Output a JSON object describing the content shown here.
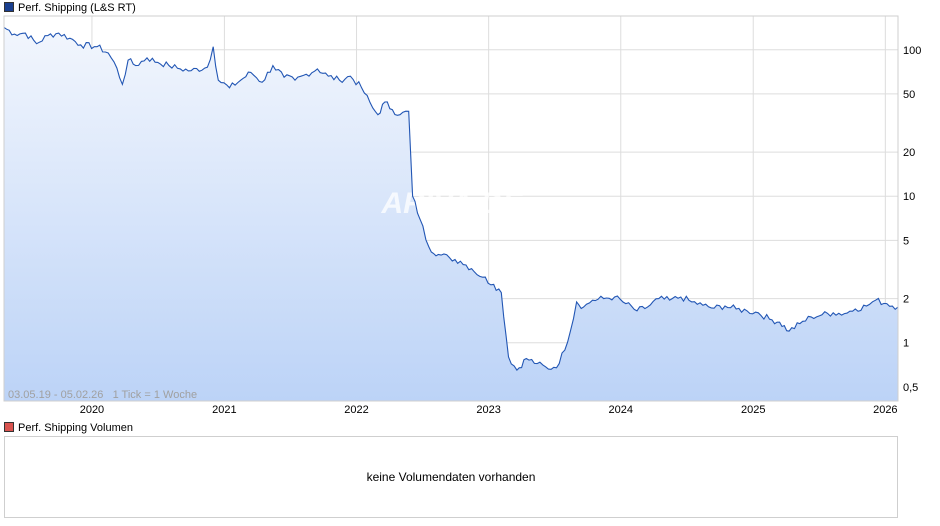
{
  "legend": {
    "price_label": "Perf. Shipping (L&S RT)",
    "price_color": "#1a3f8f",
    "volume_label": "Perf. Shipping Volumen",
    "volume_color": "#d9534f"
  },
  "watermark": "ARIVA.DE",
  "info_text": "03.05.19 - 05.02.26   1 Tick = 1 Woche",
  "volume_message": "keine Volumendaten vorhanden",
  "colors": {
    "line": "#2256b4",
    "fill_top": "#f2f6fd",
    "fill_bottom": "#bcd3f7",
    "grid": "#dddddd"
  },
  "chart_data": {
    "type": "area",
    "title": "Perf. Shipping (L&S RT)",
    "y_scale": "log",
    "ylim": [
      0.4,
      170
    ],
    "xlim": [
      "2019-05-03",
      "2026-02-05"
    ],
    "grid": true,
    "legend_position": "top-left",
    "y_ticks": [
      0.5,
      1,
      2,
      5,
      10,
      20,
      50,
      100
    ],
    "y_tick_labels": [
      "0,5",
      "1",
      "2",
      "5",
      "10",
      "20",
      "50",
      "100"
    ],
    "x_ticks": [
      "2020-01-01",
      "2021-01-01",
      "2022-01-01",
      "2023-01-01",
      "2024-01-01",
      "2025-01-01",
      "2026-01-01"
    ],
    "x_tick_labels": [
      "2020",
      "2021",
      "2022",
      "2023",
      "2024",
      "2025",
      "2026"
    ],
    "series": [
      {
        "name": "Perf. Shipping (L&S RT)",
        "points": [
          [
            "2019-05-03",
            142
          ],
          [
            "2019-06-01",
            128
          ],
          [
            "2019-07-01",
            130
          ],
          [
            "2019-08-01",
            110
          ],
          [
            "2019-09-01",
            125
          ],
          [
            "2019-10-01",
            130
          ],
          [
            "2019-11-01",
            120
          ],
          [
            "2019-12-01",
            108
          ],
          [
            "2020-01-15",
            105
          ],
          [
            "2020-02-15",
            95
          ],
          [
            "2020-03-10",
            75
          ],
          [
            "2020-03-25",
            58
          ],
          [
            "2020-04-10",
            85
          ],
          [
            "2020-05-01",
            78
          ],
          [
            "2020-06-01",
            88
          ],
          [
            "2020-07-01",
            82
          ],
          [
            "2020-08-01",
            78
          ],
          [
            "2020-09-01",
            74
          ],
          [
            "2020-10-01",
            72
          ],
          [
            "2020-11-15",
            76
          ],
          [
            "2020-12-01",
            105
          ],
          [
            "2020-12-15",
            62
          ],
          [
            "2021-01-15",
            55
          ],
          [
            "2021-02-15",
            62
          ],
          [
            "2021-03-15",
            70
          ],
          [
            "2021-04-15",
            60
          ],
          [
            "2021-05-15",
            78
          ],
          [
            "2021-06-15",
            65
          ],
          [
            "2021-07-15",
            62
          ],
          [
            "2021-08-15",
            68
          ],
          [
            "2021-09-15",
            74
          ],
          [
            "2021-10-15",
            66
          ],
          [
            "2021-11-15",
            62
          ],
          [
            "2021-12-15",
            66
          ],
          [
            "2022-01-15",
            55
          ],
          [
            "2022-02-15",
            40
          ],
          [
            "2022-03-01",
            36
          ],
          [
            "2022-03-20",
            44
          ],
          [
            "2022-04-10",
            39
          ],
          [
            "2022-05-01",
            36
          ],
          [
            "2022-05-25",
            38
          ],
          [
            "2022-06-05",
            10
          ],
          [
            "2022-06-25",
            7
          ],
          [
            "2022-07-20",
            4.5
          ],
          [
            "2022-08-15",
            4
          ],
          [
            "2022-09-15",
            3.8
          ],
          [
            "2022-10-15",
            3.6
          ],
          [
            "2022-11-15",
            3.2
          ],
          [
            "2022-12-15",
            2.8
          ],
          [
            "2023-01-15",
            2.5
          ],
          [
            "2023-02-05",
            2.2
          ],
          [
            "2023-02-25",
            0.8
          ],
          [
            "2023-03-20",
            0.65
          ],
          [
            "2023-04-15",
            0.78
          ],
          [
            "2023-05-15",
            0.72
          ],
          [
            "2023-06-15",
            0.66
          ],
          [
            "2023-07-15",
            0.72
          ],
          [
            "2023-08-15",
            1.2
          ],
          [
            "2023-09-01",
            1.9
          ],
          [
            "2023-09-20",
            1.75
          ],
          [
            "2023-10-15",
            1.95
          ],
          [
            "2023-11-15",
            2.0
          ],
          [
            "2023-12-15",
            2.05
          ],
          [
            "2024-01-15",
            1.85
          ],
          [
            "2024-02-15",
            1.65
          ],
          [
            "2024-03-15",
            1.75
          ],
          [
            "2024-04-15",
            2.0
          ],
          [
            "2024-05-15",
            1.95
          ],
          [
            "2024-06-15",
            2.05
          ],
          [
            "2024-07-15",
            1.9
          ],
          [
            "2024-08-15",
            1.8
          ],
          [
            "2024-09-15",
            1.72
          ],
          [
            "2024-10-15",
            1.78
          ],
          [
            "2024-11-15",
            1.7
          ],
          [
            "2024-12-15",
            1.65
          ],
          [
            "2025-01-15",
            1.6
          ],
          [
            "2025-02-15",
            1.45
          ],
          [
            "2025-03-15",
            1.38
          ],
          [
            "2025-04-10",
            1.2
          ],
          [
            "2025-05-10",
            1.35
          ],
          [
            "2025-06-10",
            1.5
          ],
          [
            "2025-07-10",
            1.55
          ],
          [
            "2025-08-10",
            1.6
          ],
          [
            "2025-09-10",
            1.58
          ],
          [
            "2025-10-10",
            1.7
          ],
          [
            "2025-11-10",
            1.78
          ],
          [
            "2025-12-05",
            1.95
          ],
          [
            "2026-01-05",
            1.85
          ],
          [
            "2026-02-05",
            1.75
          ]
        ]
      }
    ]
  }
}
